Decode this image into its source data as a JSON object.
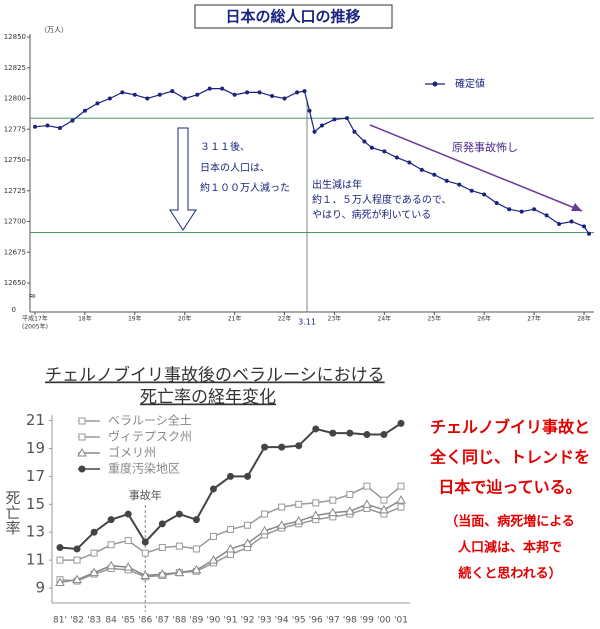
{
  "chart_data": [
    {
      "type": "line",
      "title": "日本の総人口の推移",
      "y_unit": "（万人）",
      "x": [
        17,
        17.25,
        17.5,
        17.75,
        18,
        18.25,
        18.5,
        18.75,
        19,
        19.25,
        19.5,
        19.75,
        20,
        20.25,
        20.5,
        20.75,
        21,
        21.25,
        21.5,
        21.75,
        22,
        22.25,
        22.4,
        22.5,
        22.6,
        22.75,
        23,
        23.25,
        23.4,
        23.6,
        23.75,
        24,
        24.25,
        24.5,
        24.75,
        25,
        25.25,
        25.5,
        25.75,
        26,
        26.25,
        26.5,
        26.75,
        27,
        27.25,
        27.5,
        27.75,
        28,
        28.1
      ],
      "series": [
        {
          "name": "確定値",
          "color": "#1a237e",
          "values": [
            12777,
            12778,
            12776,
            12782,
            12790,
            12796,
            12800,
            12805,
            12803,
            12800,
            12803,
            12806,
            12800,
            12803,
            12808,
            12808,
            12803,
            12805,
            12805,
            12802,
            12800,
            12805,
            12806,
            12790,
            12773,
            12778,
            12783,
            12784,
            12773,
            12765,
            12760,
            12757,
            12752,
            12748,
            12742,
            12738,
            12733,
            12730,
            12725,
            12722,
            12715,
            12710,
            12708,
            12710,
            12705,
            12698,
            12700,
            12696,
            12690
          ]
        }
      ],
      "xlim": [
        16.9,
        28.2
      ],
      "ylim": [
        12650,
        12850
      ],
      "yticks": [
        12850,
        12825,
        12800,
        12775,
        12750,
        12725,
        12700,
        12675,
        12650
      ],
      "y_break_label": "0",
      "xticks": [
        {
          "value": 17,
          "label": "平成17年"
        },
        {
          "value": 18,
          "label": "18年"
        },
        {
          "value": 19,
          "label": "19年"
        },
        {
          "value": 20,
          "label": "20年"
        },
        {
          "value": 21,
          "label": "21年"
        },
        {
          "value": 22,
          "label": "22年"
        },
        {
          "value": 23,
          "label": "23年"
        },
        {
          "value": 24,
          "label": "24年"
        },
        {
          "value": 25,
          "label": "25年"
        },
        {
          "value": 26,
          "label": "26年"
        },
        {
          "value": 27,
          "label": "27年"
        },
        {
          "value": 28,
          "label": "28年"
        }
      ],
      "x_start_note": "(2005年)",
      "event": {
        "x": 22.45,
        "label": "3.11"
      },
      "reference_lines": [
        12784,
        12691
      ],
      "note_left": [
        "３１１後、",
        "日本の人口は、",
        "約１００万人減った"
      ],
      "note_right": [
        "出生減は年",
        "約１．５万人程度であるので、",
        "やはり、病死が利いている"
      ],
      "trend_label": "原発事故怖し"
    },
    {
      "type": "line",
      "title": [
        "チェルノブイリ事故後のベラルーシにおける",
        "死亡率の経年変化"
      ],
      "y_label": "死亡率",
      "categories": [
        "81'",
        "'82",
        "'83",
        "84",
        "'85",
        "'86",
        "'87",
        "'88",
        "'89",
        "'90",
        "'91",
        "'92",
        "'93",
        "'94",
        "'95",
        "'96",
        "'97",
        "'98",
        "'99",
        "'00",
        "'01"
      ],
      "series": [
        {
          "name": "ベラルーシ全土",
          "color": "#999999",
          "marker": "square",
          "values": [
            11.0,
            11.0,
            11.5,
            12.1,
            12.4,
            11.5,
            11.9,
            12.0,
            11.8,
            12.7,
            13.2,
            13.5,
            14.3,
            14.8,
            15.0,
            15.1,
            15.3,
            15.7,
            16.3,
            15.3,
            16.3
          ]
        },
        {
          "name": "ヴィテプスク州",
          "color": "#999999",
          "marker": "square",
          "values": [
            9.6,
            9.5,
            10.0,
            10.4,
            10.3,
            9.8,
            9.9,
            10.1,
            10.2,
            10.8,
            11.4,
            11.9,
            12.8,
            13.3,
            13.6,
            13.9,
            14.1,
            14.3,
            14.7,
            14.3,
            14.8
          ]
        },
        {
          "name": "ゴメリ州",
          "color": "#888888",
          "marker": "triangle",
          "values": [
            9.4,
            9.6,
            10.1,
            10.6,
            10.5,
            9.9,
            10.0,
            10.1,
            10.3,
            11.0,
            11.8,
            12.2,
            13.1,
            13.5,
            13.8,
            14.2,
            14.4,
            14.5,
            15.0,
            14.6,
            15.3
          ]
        },
        {
          "name": "重度汚染地区",
          "color": "#444444",
          "marker": "circle",
          "values": [
            11.9,
            11.8,
            13.0,
            13.9,
            14.3,
            12.3,
            13.6,
            14.3,
            13.9,
            16.1,
            17.0,
            17.0,
            19.1,
            19.1,
            19.2,
            20.4,
            20.1,
            20.1,
            20.0,
            20.0,
            20.8
          ]
        }
      ],
      "ylim": [
        8.5,
        21.4
      ],
      "yticks": [
        9,
        11,
        13,
        15,
        17,
        19,
        21
      ],
      "event": {
        "category": 5,
        "label": "事故年"
      }
    }
  ],
  "commentary": {
    "main": [
      "チェルノブイリ事故と",
      "全く同じ、トレンドを",
      "日本で辿っている。"
    ],
    "sub": [
      "（当面、病死増による",
      "人口減は、本邦で",
      "続くと思われる）"
    ]
  }
}
